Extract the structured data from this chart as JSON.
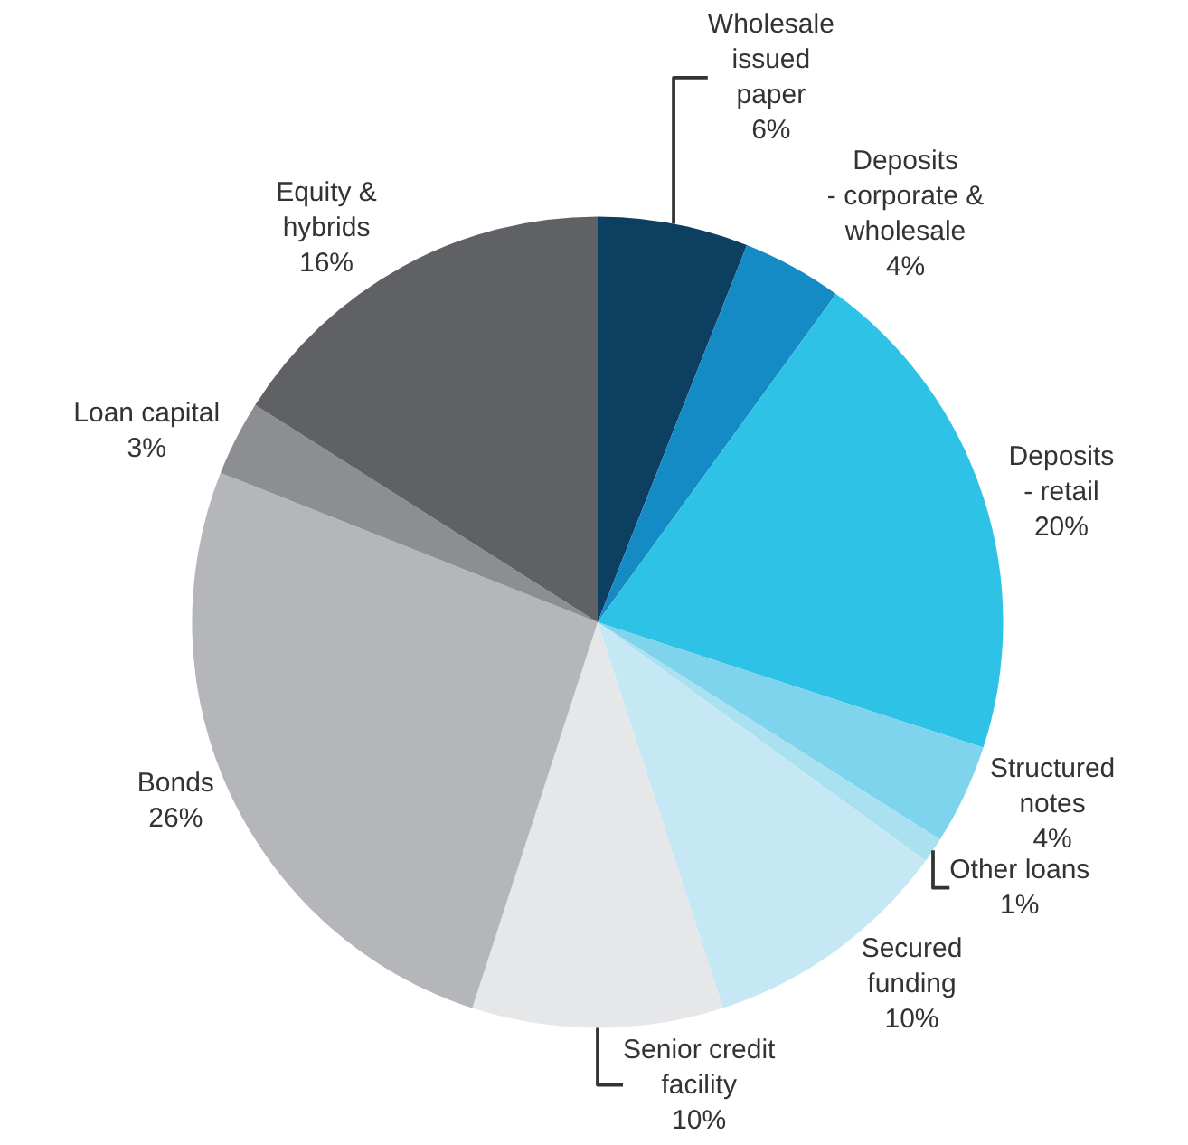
{
  "chart_data": {
    "type": "pie",
    "categories": [
      "Wholesale\nissued\npaper",
      "Deposits\n- corporate &\nwholesale",
      "Deposits\n- retail",
      "Structured\nnotes",
      "Other loans",
      "Secured\nfunding",
      "Senior credit\nfacility",
      "Bonds",
      "Loan capital",
      "Equity &\nhybrids"
    ],
    "values": [
      6,
      4,
      20,
      4,
      1,
      10,
      10,
      26,
      3,
      16
    ],
    "value_labels": [
      "6%",
      "4%",
      "20%",
      "4%",
      "1%",
      "10%",
      "10%",
      "26%",
      "3%",
      "16%"
    ],
    "colors": [
      "#0d3f60",
      "#158bc6",
      "#2ec2e6",
      "#7dd4ec",
      "#a9e1f1",
      "#c6e8f4",
      "#e6e7e9",
      "#b5b6ba",
      "#8d8e92",
      "#606165"
    ]
  }
}
